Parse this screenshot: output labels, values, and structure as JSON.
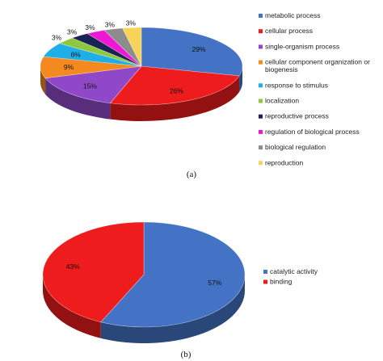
{
  "chart_data": [
    {
      "type": "pie",
      "panel_label": "(a)",
      "categories": [
        "metabolic process",
        "cellular process",
        "single-organism process",
        "cellular component organization or biogenesis",
        "response to stimulus",
        "localization",
        "reproductive process",
        "regulation of biological process",
        "biological regulation",
        "reproduction"
      ],
      "values": [
        29,
        26,
        15,
        9,
        6,
        3,
        3,
        3,
        3,
        3
      ],
      "value_labels": [
        "29%",
        "26%",
        "15%",
        "9%",
        "6%",
        "3%",
        "3%",
        "3%",
        "3%",
        "3%"
      ],
      "colors": [
        "#4472c4",
        "#ee1c1c",
        "#8e48c8",
        "#f4891f",
        "#1faee6",
        "#8fc83c",
        "#1a2454",
        "#ee18d4",
        "#8c8c8c",
        "#f7d35a"
      ],
      "legend": {
        "placement": "right"
      }
    },
    {
      "type": "pie",
      "panel_label": "(b)",
      "categories": [
        "catalytic activity",
        "binding"
      ],
      "values": [
        57,
        43
      ],
      "value_labels": [
        "57%",
        "43%"
      ],
      "colors": [
        "#4472c4",
        "#ee1c1c"
      ],
      "legend": {
        "placement": "right"
      }
    }
  ]
}
